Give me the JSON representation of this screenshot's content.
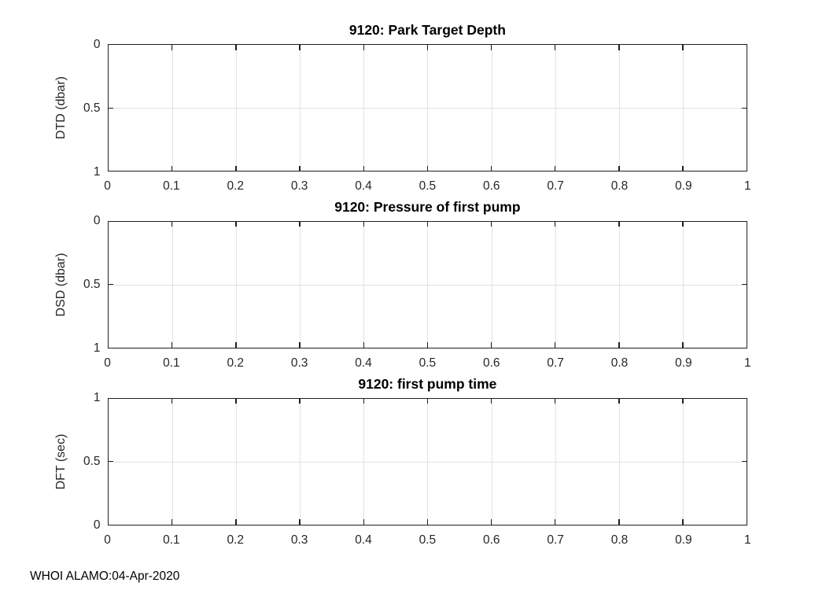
{
  "figure": {
    "footer": "WHOI ALAMO:04-Apr-2020",
    "colors": {
      "axis": "#1f1f1f",
      "grid": "#e2e2e2",
      "title": "#000000",
      "tick_text": "#262626",
      "background": "#ffffff"
    }
  },
  "chart_data": [
    {
      "type": "line",
      "title": "9120: Park Target Depth",
      "xlabel": "",
      "ylabel": "DTD (dbar)",
      "xlim": [
        0,
        1
      ],
      "ylim": [
        0,
        1
      ],
      "ydir": "reverse",
      "xticks": [
        "0",
        "0.1",
        "0.2",
        "0.3",
        "0.4",
        "0.5",
        "0.6",
        "0.7",
        "0.8",
        "0.9",
        "1"
      ],
      "yticks": [
        "0",
        "0.5",
        "1"
      ],
      "grid": true,
      "legend": null,
      "series": []
    },
    {
      "type": "line",
      "title": "9120: Pressure of first pump",
      "xlabel": "",
      "ylabel": "DSD (dbar)",
      "xlim": [
        0,
        1
      ],
      "ylim": [
        0,
        1
      ],
      "ydir": "reverse",
      "xticks": [
        "0",
        "0.1",
        "0.2",
        "0.3",
        "0.4",
        "0.5",
        "0.6",
        "0.7",
        "0.8",
        "0.9",
        "1"
      ],
      "yticks": [
        "0",
        "0.5",
        "1"
      ],
      "grid": true,
      "legend": null,
      "series": []
    },
    {
      "type": "line",
      "title": "9120: first pump time",
      "xlabel": "",
      "ylabel": "DFT (sec)",
      "xlim": [
        0,
        1
      ],
      "ylim": [
        0,
        1
      ],
      "ydir": "normal",
      "xticks": [
        "0",
        "0.1",
        "0.2",
        "0.3",
        "0.4",
        "0.5",
        "0.6",
        "0.7",
        "0.8",
        "0.9",
        "1"
      ],
      "yticks": [
        "0",
        "0.5",
        "1"
      ],
      "grid": true,
      "legend": null,
      "series": []
    }
  ]
}
